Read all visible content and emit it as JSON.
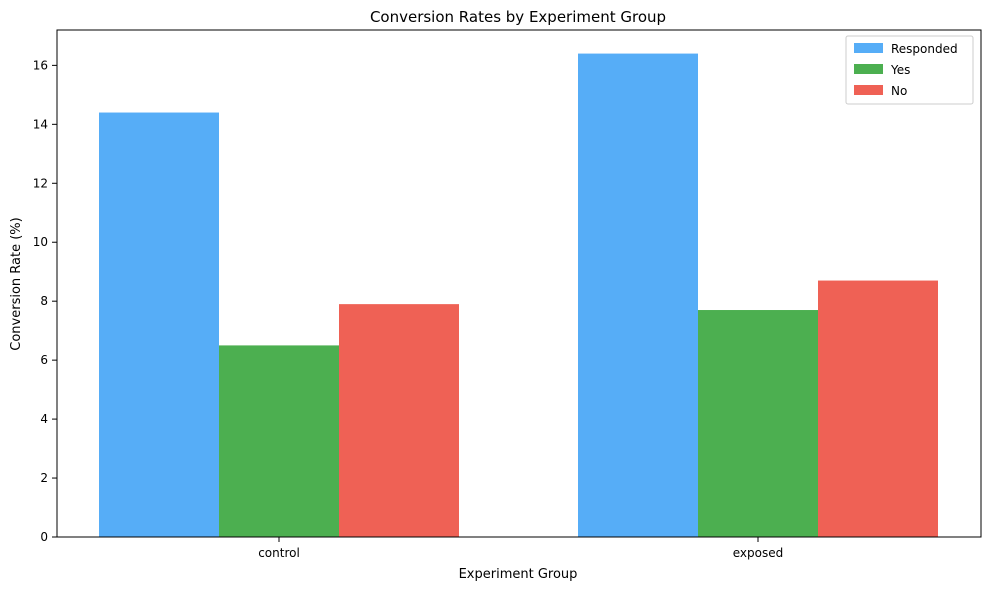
{
  "chart_data": {
    "type": "bar",
    "title": "Conversion Rates by Experiment Group",
    "xlabel": "Experiment Group",
    "ylabel": "Conversion Rate (%)",
    "categories": [
      "control",
      "exposed"
    ],
    "series": [
      {
        "name": "Responded",
        "color": "#56adf7",
        "values": [
          14.4,
          16.4
        ]
      },
      {
        "name": "Yes",
        "color": "#4caf50",
        "values": [
          6.5,
          7.7
        ]
      },
      {
        "name": "No",
        "color": "#ef6155",
        "values": [
          7.9,
          8.7
        ]
      }
    ],
    "ylim": [
      0,
      17.2
    ],
    "yticks": [
      0,
      2,
      4,
      6,
      8,
      10,
      12,
      14,
      16
    ],
    "grid": false,
    "legend_position": "top-right"
  }
}
